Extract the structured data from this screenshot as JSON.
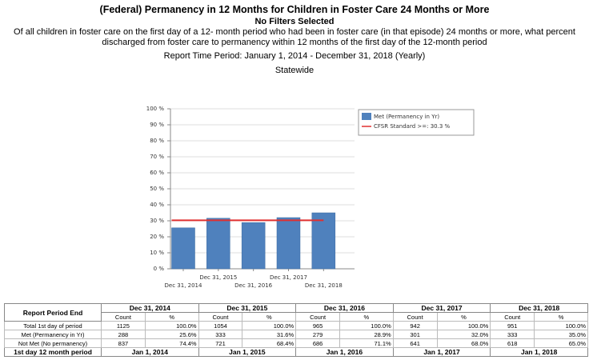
{
  "chart_data": {
    "type": "bar",
    "title": "(Federal) Permanency in 12 Months for Children in Foster Care 24 Months or More",
    "subtitle": "No Filters Selected",
    "description": "Of all children in foster care on the first day of a 12- month period who had been in foster care (in that episode) 24 months or more, what percent discharged from foster care to permanency within 12 months of the first day of the 12-month period",
    "period": "Report Time Period: January 1, 2014 - December 31, 2018 (Yearly)",
    "scope": "Statewide",
    "categories": [
      "Dec 31, 2014",
      "Dec 31, 2015",
      "Dec 31, 2016",
      "Dec 31, 2017",
      "Dec 31, 2018"
    ],
    "series": [
      {
        "name": "Met (Permanency in Yr)",
        "color": "#4f81bd",
        "values": [
          25.6,
          31.6,
          28.9,
          32.0,
          35.0
        ]
      },
      {
        "name": "CFSR Standard >=: 30.3 %",
        "color": "#e03030",
        "type": "line",
        "value": 30.3
      }
    ],
    "ylim": [
      0,
      100
    ],
    "yticks": [
      {
        "value": 0,
        "label": "0 %"
      },
      {
        "value": 10,
        "label": "10 %"
      },
      {
        "value": 20,
        "label": "20 %"
      },
      {
        "value": 30,
        "label": "30 %"
      },
      {
        "value": 40,
        "label": "40 %"
      },
      {
        "value": 50,
        "label": "50 %"
      },
      {
        "value": 60,
        "label": "60 %"
      },
      {
        "value": 70,
        "label": "70 %"
      },
      {
        "value": 80,
        "label": "80 %"
      },
      {
        "value": 90,
        "label": "90 %"
      },
      {
        "value": 100,
        "label": "100 %"
      }
    ],
    "grid": true,
    "legend": "right"
  },
  "table": {
    "header": [
      "Report Period End",
      "Dec 31, 2014",
      "Dec 31, 2015",
      "Dec 31, 2016",
      "Dec 31, 2017",
      "Dec 31, 2018"
    ],
    "subheader": [
      "Count",
      "%"
    ],
    "rows": [
      [
        "Total 1st day of period",
        "1125",
        "100.0%",
        "1054",
        "100.0%",
        "965",
        "100.0%",
        "942",
        "100.0%",
        "951",
        "100.0%"
      ],
      [
        "Met (Permanency in Yr)",
        "288",
        "25.6%",
        "333",
        "31.6%",
        "279",
        "28.9%",
        "301",
        "32.0%",
        "333",
        "35.0%"
      ],
      [
        "Not Met (No permanency)",
        "837",
        "74.4%",
        "721",
        "68.4%",
        "686",
        "71.1%",
        "641",
        "68.0%",
        "618",
        "65.0%"
      ]
    ],
    "footer": [
      "1st day 12 month period",
      "Jan 1, 2014",
      "Jan 1, 2015",
      "Jan 1, 2016",
      "Jan 1, 2017",
      "Jan 1, 2018"
    ]
  }
}
